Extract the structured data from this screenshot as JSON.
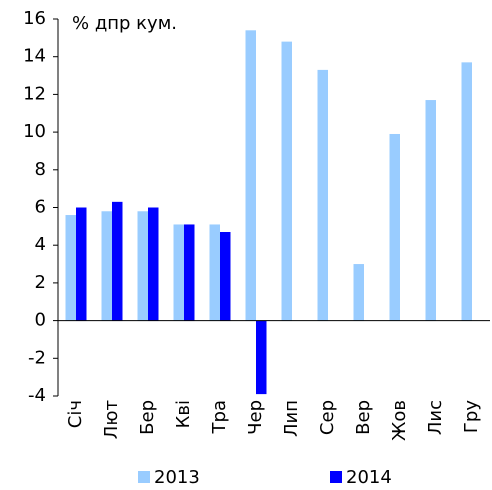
{
  "chart_data": {
    "type": "bar",
    "annotation": "% дпр кум.",
    "categories": [
      "Січ",
      "Лют",
      "Бер",
      "Кві",
      "Тра",
      "Чер",
      "Лип",
      "Сер",
      "Вер",
      "Жов",
      "Лис",
      "Гру"
    ],
    "series": [
      {
        "name": "2013",
        "color": "#99ccff",
        "values": [
          5.6,
          5.8,
          5.8,
          5.1,
          5.1,
          15.4,
          14.8,
          13.3,
          3.0,
          9.9,
          11.7,
          13.7
        ]
      },
      {
        "name": "2014",
        "color": "#0000ff",
        "values": [
          6.0,
          6.3,
          6.0,
          5.1,
          4.7,
          -3.9,
          null,
          null,
          null,
          null,
          null,
          null
        ]
      }
    ],
    "ylim": [
      -4,
      16
    ],
    "yticks": [
      -4,
      -2,
      0,
      2,
      4,
      6,
      8,
      10,
      12,
      14,
      16
    ],
    "grid": false,
    "legend": "bottom"
  }
}
